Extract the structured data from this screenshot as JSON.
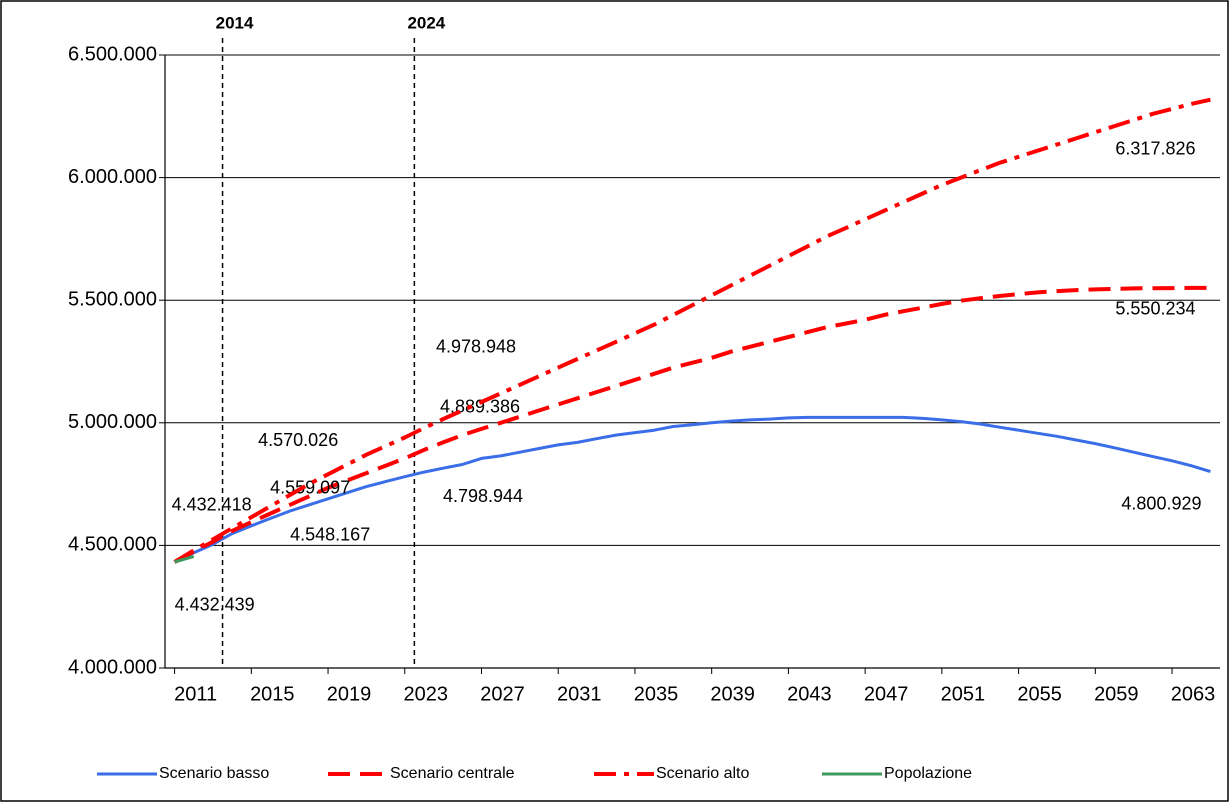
{
  "chart_data": {
    "type": "line",
    "x": [
      2011,
      2012,
      2013,
      2014,
      2015,
      2016,
      2017,
      2018,
      2019,
      2020,
      2021,
      2022,
      2023,
      2024,
      2025,
      2026,
      2027,
      2028,
      2029,
      2030,
      2031,
      2032,
      2033,
      2034,
      2035,
      2036,
      2037,
      2038,
      2039,
      2040,
      2041,
      2042,
      2043,
      2044,
      2045,
      2046,
      2047,
      2048,
      2049,
      2050,
      2051,
      2052,
      2053,
      2054,
      2055,
      2056,
      2057,
      2058,
      2059,
      2060,
      2061,
      2062,
      2063,
      2064,
      2065
    ],
    "xlim": [
      2010.5,
      2065.5
    ],
    "xticks": [
      2011,
      2015,
      2019,
      2023,
      2027,
      2031,
      2035,
      2039,
      2043,
      2047,
      2051,
      2055,
      2059,
      2063
    ],
    "ylim": [
      4000000,
      6500000
    ],
    "yticks": [
      {
        "value": 4000000,
        "label": "4.000.000"
      },
      {
        "value": 4500000,
        "label": "4.500.000"
      },
      {
        "value": 5000000,
        "label": "5.000.000"
      },
      {
        "value": 5500000,
        "label": "5.500.000"
      },
      {
        "value": 6000000,
        "label": "6.000.000"
      },
      {
        "value": 6500000,
        "label": "6.500.000"
      }
    ],
    "grid": true,
    "legend": "bottom",
    "vlines": [
      {
        "x": 2013.5,
        "label": "2014"
      },
      {
        "x": 2023.5,
        "label": "2024"
      }
    ],
    "series": [
      {
        "name": "Scenario basso",
        "color": "#3a6de8",
        "dash": "solid",
        "values": [
          4432418,
          4470000,
          4505000,
          4548167,
          4580000,
          4610000,
          4640000,
          4665000,
          4690000,
          4715000,
          4740000,
          4760000,
          4780000,
          4798944,
          4815000,
          4830000,
          4855000,
          4865000,
          4880000,
          4895000,
          4910000,
          4920000,
          4935000,
          4950000,
          4960000,
          4970000,
          4985000,
          4992000,
          5000000,
          5007000,
          5012000,
          5015000,
          5020000,
          5022000,
          5022000,
          5022000,
          5022000,
          5022000,
          5022000,
          5018000,
          5012000,
          5005000,
          4995000,
          4982000,
          4970000,
          4957000,
          4945000,
          4930000,
          4915000,
          4898000,
          4880000,
          4862000,
          4845000,
          4825000,
          4800929
        ],
        "value_labels": [
          "4.432.418",
          null,
          null,
          "4.548.167",
          null,
          null,
          null,
          null,
          null,
          null,
          null,
          null,
          null,
          "4.798.944",
          null,
          null,
          null,
          null,
          null,
          null,
          null,
          null,
          null,
          null,
          null,
          null,
          null,
          null,
          null,
          null,
          null,
          null,
          null,
          null,
          null,
          null,
          null,
          null,
          null,
          null,
          null,
          null,
          null,
          null,
          null,
          null,
          null,
          null,
          null,
          null,
          null,
          null,
          null,
          null,
          "4.800.929"
        ]
      },
      {
        "name": "Scenario centrale",
        "color": "#ff0000",
        "dash": "dash",
        "values": [
          4432418,
          4475000,
          4515000,
          4559097,
          4595000,
          4630000,
          4665000,
          4700000,
          4735000,
          4765000,
          4795000,
          4825000,
          4855000,
          4889386,
          4920000,
          4950000,
          4975000,
          5000000,
          5025000,
          5050000,
          5075000,
          5100000,
          5125000,
          5150000,
          5175000,
          5200000,
          5225000,
          5245000,
          5265000,
          5290000,
          5310000,
          5330000,
          5350000,
          5370000,
          5390000,
          5405000,
          5420000,
          5440000,
          5455000,
          5470000,
          5485000,
          5498000,
          5508000,
          5517000,
          5525000,
          5532000,
          5537000,
          5541000,
          5544000,
          5546000,
          5548000,
          5549000,
          5549500,
          5550000,
          5550234
        ],
        "value_labels": [
          null,
          null,
          null,
          "4.559.097",
          null,
          null,
          null,
          null,
          null,
          null,
          null,
          null,
          null,
          "4.889.386",
          null,
          null,
          null,
          null,
          null,
          null,
          null,
          null,
          null,
          null,
          null,
          null,
          null,
          null,
          null,
          null,
          null,
          null,
          null,
          null,
          null,
          null,
          null,
          null,
          null,
          null,
          null,
          null,
          null,
          null,
          null,
          null,
          null,
          null,
          null,
          null,
          null,
          null,
          null,
          null,
          "5.550.234"
        ]
      },
      {
        "name": "Scenario alto",
        "color": "#ff0000",
        "dash": "dashdot",
        "values": [
          4432418,
          4480000,
          4525000,
          4570026,
          4615000,
          4660000,
          4705000,
          4750000,
          4790000,
          4830000,
          4870000,
          4905000,
          4940000,
          4978948,
          5015000,
          5050000,
          5085000,
          5120000,
          5155000,
          5190000,
          5225000,
          5260000,
          5295000,
          5330000,
          5365000,
          5400000,
          5440000,
          5480000,
          5520000,
          5560000,
          5600000,
          5640000,
          5680000,
          5720000,
          5760000,
          5795000,
          5830000,
          5865000,
          5900000,
          5935000,
          5970000,
          6000000,
          6030000,
          6060000,
          6085000,
          6110000,
          6135000,
          6160000,
          6185000,
          6210000,
          6235000,
          6260000,
          6280000,
          6300000,
          6317826
        ],
        "value_labels": [
          null,
          null,
          null,
          "4.570.026",
          null,
          null,
          null,
          null,
          null,
          null,
          null,
          null,
          null,
          "4.978.948",
          null,
          null,
          null,
          null,
          null,
          null,
          null,
          null,
          null,
          null,
          null,
          null,
          null,
          null,
          null,
          null,
          null,
          null,
          null,
          null,
          null,
          null,
          null,
          null,
          null,
          null,
          null,
          null,
          null,
          null,
          null,
          null,
          null,
          null,
          null,
          null,
          null,
          null,
          null,
          null,
          "6.317.826"
        ]
      },
      {
        "name": "Popolazione",
        "color": "#3d9a5e",
        "dash": "solid",
        "values": [
          4432439,
          4455000,
          null,
          null,
          null,
          null,
          null,
          null,
          null,
          null,
          null,
          null,
          null,
          null,
          null,
          null,
          null,
          null,
          null,
          null,
          null,
          null,
          null,
          null,
          null,
          null,
          null,
          null,
          null,
          null,
          null,
          null,
          null,
          null,
          null,
          null,
          null,
          null,
          null,
          null,
          null,
          null,
          null,
          null,
          null,
          null,
          null,
          null,
          null,
          null,
          null,
          null,
          null,
          null,
          null
        ],
        "value_labels": [
          "4.432.439",
          null,
          null,
          null,
          null,
          null,
          null,
          null,
          null,
          null,
          null,
          null,
          null,
          null,
          null,
          null,
          null,
          null,
          null,
          null,
          null,
          null,
          null,
          null,
          null,
          null,
          null,
          null,
          null,
          null,
          null,
          null,
          null,
          null,
          null,
          null,
          null,
          null,
          null,
          null,
          null,
          null,
          null,
          null,
          null,
          null,
          null,
          null,
          null,
          null,
          null,
          null,
          null,
          null,
          null
        ]
      }
    ]
  }
}
